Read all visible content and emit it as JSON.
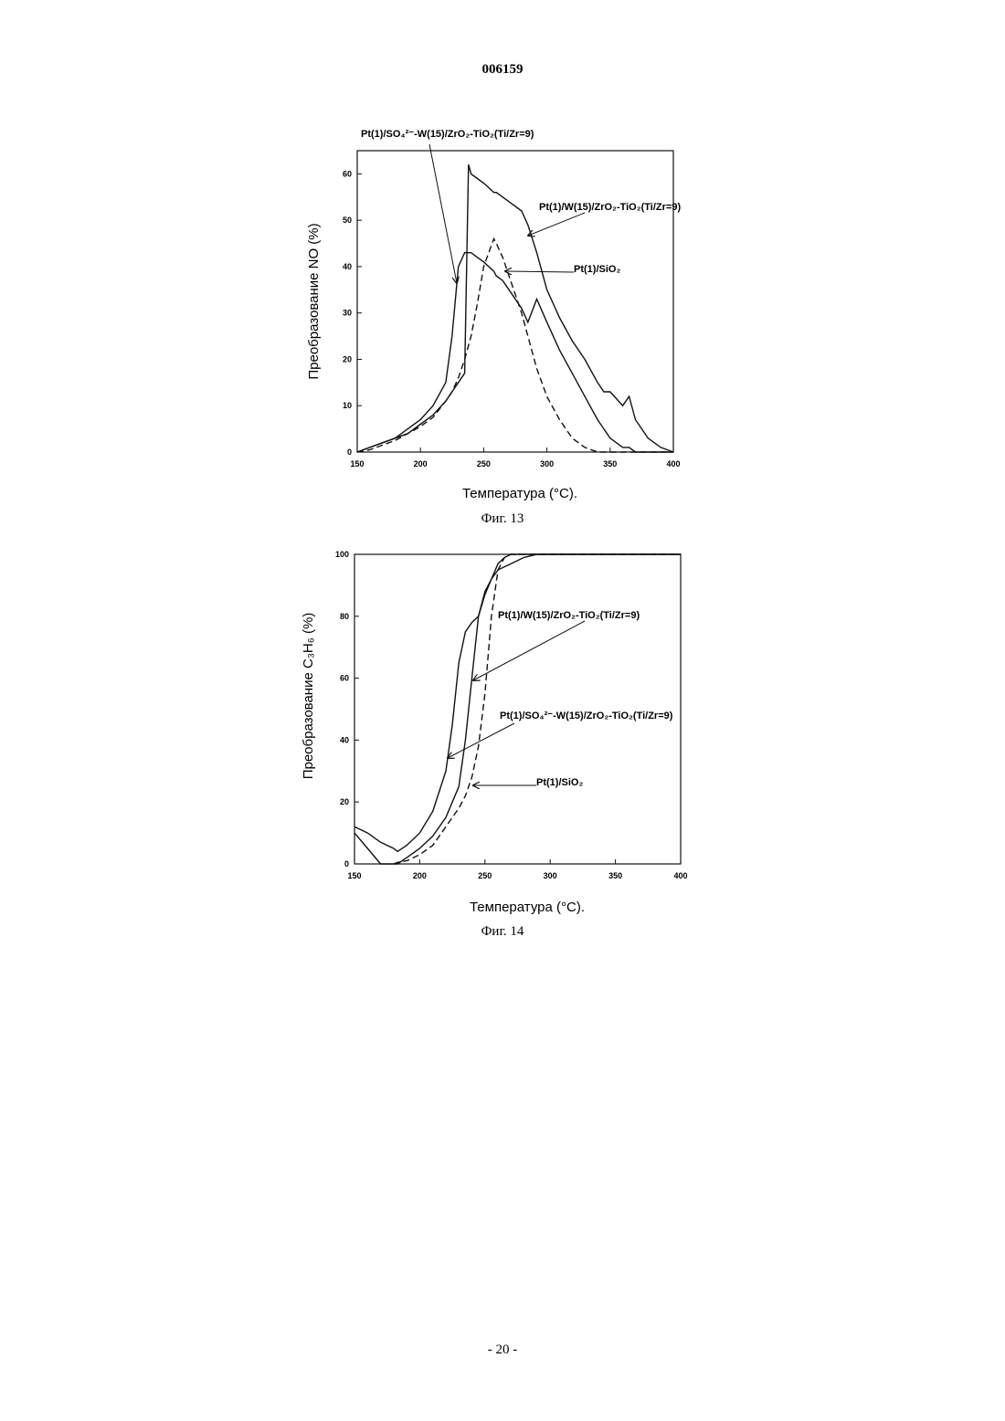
{
  "header": "006159",
  "chart_data": [
    {
      "type": "line",
      "ylabel": "Преобразование NO (%)",
      "xlabel": "Температура (°C).",
      "caption": "Фиг. 13",
      "x": [
        150,
        160,
        170,
        180,
        190,
        200,
        210,
        220,
        225,
        230,
        235,
        238,
        240,
        245,
        250,
        258,
        260,
        265,
        270,
        280,
        285,
        292,
        300,
        310,
        320,
        330,
        340,
        345,
        350,
        360,
        365,
        370,
        375,
        380,
        390,
        400
      ],
      "series": [
        {
          "name": "Pt(1)/SO₄²⁻-W(15)/ZrO₂-TiO₂(Ti/Zr=9)",
          "color": "#111111",
          "dash": false,
          "values": [
            0,
            1,
            2,
            3,
            5,
            7,
            10,
            15,
            25,
            40,
            43,
            43,
            43,
            42,
            41,
            39,
            38,
            37,
            35,
            31,
            28,
            33,
            28,
            22,
            17,
            12,
            7,
            5,
            3,
            1,
            1,
            0,
            0,
            0,
            0,
            0
          ]
        },
        {
          "name": "Pt(1)/W(15)/ZrO₂-TiO₂(Ti/Zr=9)",
          "color": "#111111",
          "dash": false,
          "values": [
            0,
            1,
            2,
            3,
            4,
            6,
            8,
            11,
            13,
            15,
            17,
            62,
            60,
            59,
            58,
            56,
            56,
            55,
            54,
            52,
            49,
            43,
            35,
            29,
            24,
            20,
            15,
            13,
            13,
            10,
            12,
            7,
            5,
            3,
            1,
            0
          ]
        },
        {
          "name": "Pt(1)/SiO₂",
          "color": "#111111",
          "dash": true,
          "values": [
            0,
            0.5,
            1.5,
            2.5,
            4,
            5.5,
            7.5,
            11,
            13,
            16,
            20,
            23,
            25,
            32,
            40,
            46,
            45,
            42,
            38,
            30,
            25,
            18,
            12,
            7,
            3,
            1,
            0,
            0,
            0,
            0,
            0,
            0,
            0,
            0,
            0,
            0
          ]
        }
      ],
      "xlim": [
        150,
        400
      ],
      "ylim": [
        0,
        65
      ],
      "xticks": [
        150,
        200,
        250,
        300,
        350,
        400
      ],
      "yticks": [
        0,
        10,
        20,
        30,
        40,
        50,
        60
      ]
    },
    {
      "type": "line",
      "ylabel": "Преобразование C₃H₆ (%)",
      "xlabel": "Температура (°C).",
      "caption": "Фиг. 14",
      "x": [
        150,
        160,
        170,
        180,
        183,
        190,
        200,
        210,
        220,
        225,
        230,
        235,
        240,
        245,
        250,
        255,
        260,
        265,
        270,
        280,
        290,
        300,
        350,
        400
      ],
      "series": [
        {
          "name": "Pt(1)/W(15)/ZrO₂-TiO₂(Ti/Zr=9)",
          "color": "#111111",
          "dash": false,
          "values": [
            10,
            5,
            0,
            0,
            0,
            2,
            5,
            9,
            15,
            20,
            25,
            40,
            60,
            80,
            88,
            92,
            95,
            96,
            97,
            99,
            100,
            100,
            100,
            100
          ]
        },
        {
          "name": "Pt(1)/SO₄²⁻-W(15)/ZrO₂-TiO₂(Ti/Zr=9)",
          "color": "#111111",
          "dash": false,
          "values": [
            12,
            10,
            7,
            5,
            4,
            6,
            10,
            17,
            30,
            45,
            65,
            75,
            78,
            80,
            87,
            92,
            97,
            99,
            100,
            100,
            100,
            100,
            100,
            100
          ]
        },
        {
          "name": "Pt(1)/SiO₂",
          "color": "#111111",
          "dash": true,
          "values": [
            null,
            null,
            null,
            0,
            0.5,
            1,
            3,
            6,
            12,
            15,
            18,
            22,
            28,
            38,
            55,
            80,
            95,
            99,
            100,
            100,
            100,
            100,
            100,
            100
          ]
        }
      ],
      "xlim": [
        150,
        400
      ],
      "ylim": [
        0,
        100
      ],
      "xticks": [
        150,
        200,
        250,
        300,
        350,
        400
      ],
      "yticks": [
        0,
        20,
        40,
        60,
        80,
        100
      ]
    }
  ],
  "footer": "- 20 -"
}
